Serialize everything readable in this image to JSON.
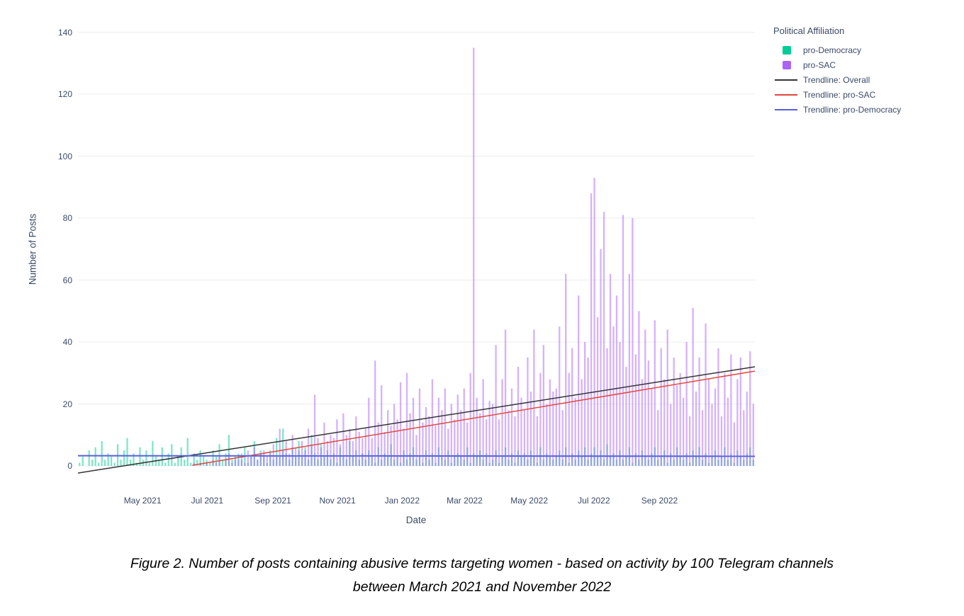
{
  "figure": {
    "caption_line1": "Figure 2. Number of posts containing abusive terms targeting women - based on activity by 100 Telegram channels",
    "caption_line2": "between March 2021 and November 2022"
  },
  "chart_data": {
    "type": "bar",
    "title": "",
    "xlabel": "Date",
    "ylabel": "Number of Posts",
    "ylim": [
      -8,
      146
    ],
    "grid": true,
    "legend_position": "right",
    "legend_title": "Political Affiliation",
    "yticks": [
      0,
      20,
      40,
      60,
      80,
      100,
      120,
      140
    ],
    "xticks": [
      {
        "label": "May 2021",
        "day": 61
      },
      {
        "label": "Jul 2021",
        "day": 122
      },
      {
        "label": "Sep 2021",
        "day": 184
      },
      {
        "label": "Nov 2021",
        "day": 245
      },
      {
        "label": "Jan 2022",
        "day": 306
      },
      {
        "label": "Mar 2022",
        "day": 365
      },
      {
        "label": "May 2022",
        "day": 426
      },
      {
        "label": "Jul 2022",
        "day": 487
      },
      {
        "label": "Sep 2022",
        "day": 549
      }
    ],
    "x_start": "2021-03-01",
    "x_end": "2022-11-30",
    "x_step_days": 3,
    "bar_opacity": 0.5,
    "legend": [
      {
        "label": "pro-Democracy",
        "swatch": "square",
        "color": "#00CC96"
      },
      {
        "label": "pro-SAC",
        "swatch": "square",
        "color": "#AB63FA"
      },
      {
        "label": "Trendline: Overall",
        "swatch": "line",
        "color": "#333333"
      },
      {
        "label": "Trendline: pro-SAC",
        "swatch": "line",
        "color": "#e2473f"
      },
      {
        "label": "Trendline: pro-Democracy",
        "swatch": "line",
        "color": "#5a5fde"
      }
    ],
    "series": [
      {
        "name": "pro-Democracy",
        "color": "#00CC96",
        "values": [
          1,
          3,
          0,
          5,
          2,
          6,
          1,
          8,
          2,
          4,
          3,
          1,
          7,
          2,
          5,
          9,
          2,
          4,
          1,
          6,
          2,
          5,
          1,
          8,
          3,
          2,
          6,
          1,
          4,
          7,
          1,
          3,
          6,
          2,
          9,
          1,
          4,
          2,
          5,
          3,
          2,
          1,
          5,
          3,
          7,
          2,
          4,
          10,
          2,
          3,
          4,
          2,
          6,
          1,
          3,
          8,
          2,
          5,
          3,
          1,
          5,
          2,
          9,
          3,
          12,
          4,
          2,
          6,
          3,
          8,
          3,
          6,
          2,
          10,
          4,
          2,
          7,
          3,
          5,
          2,
          4,
          1,
          6,
          3,
          2,
          8,
          3,
          5,
          2,
          4,
          2,
          5,
          3,
          1,
          6,
          2,
          4,
          3,
          7,
          2,
          3,
          1,
          5,
          2,
          4,
          6,
          2,
          3,
          1,
          5,
          2,
          4,
          1,
          6,
          3,
          2,
          5,
          1,
          3,
          4,
          3,
          2,
          6,
          1,
          4,
          3,
          5,
          2,
          4,
          1,
          2,
          5,
          1,
          3,
          6,
          2,
          4,
          1,
          5,
          3,
          4,
          2,
          5,
          3,
          1,
          6,
          2,
          4,
          3,
          2,
          3,
          5,
          2,
          6,
          1,
          4,
          2,
          5,
          3,
          6,
          2,
          4,
          6,
          3,
          5,
          2,
          7,
          3,
          4,
          2,
          5,
          2,
          3,
          6,
          1,
          4,
          2,
          5,
          3,
          2,
          4,
          6,
          2,
          3,
          5,
          1,
          4,
          2,
          6,
          3,
          2,
          4,
          1,
          5,
          3,
          6,
          2,
          4,
          1,
          3,
          5,
          2,
          3,
          6,
          2,
          4,
          1,
          5,
          3,
          2,
          4,
          6,
          2
        ]
      },
      {
        "name": "pro-SAC",
        "color": "#AB63FA",
        "values": [
          0,
          0,
          0,
          0,
          0,
          0,
          0,
          0,
          0,
          0,
          0,
          0,
          0,
          0,
          0,
          0,
          0,
          0,
          0,
          0,
          0,
          0,
          0,
          0,
          0,
          0,
          0,
          0,
          0,
          0,
          0,
          0,
          0,
          0,
          0,
          0,
          1,
          0,
          1,
          0,
          1,
          0,
          2,
          1,
          3,
          0,
          2,
          4,
          1,
          2,
          2,
          4,
          1,
          5,
          3,
          6,
          2,
          4,
          5,
          3,
          4,
          7,
          3,
          12,
          5,
          8,
          4,
          10,
          6,
          5,
          8,
          5,
          12,
          7,
          23,
          9,
          6,
          14,
          8,
          10,
          9,
          15,
          7,
          17,
          10,
          12,
          8,
          16,
          11,
          9,
          12,
          22,
          9,
          34,
          14,
          26,
          11,
          18,
          13,
          20,
          15,
          27,
          12,
          30,
          17,
          22,
          10,
          25,
          14,
          19,
          16,
          28,
          13,
          22,
          18,
          25,
          12,
          20,
          15,
          23,
          18,
          25,
          14,
          30,
          135,
          22,
          17,
          28,
          15,
          21,
          20,
          39,
          15,
          28,
          44,
          18,
          25,
          16,
          32,
          22,
          18,
          35,
          24,
          44,
          16,
          30,
          39,
          20,
          28,
          24,
          25,
          45,
          18,
          62,
          30,
          38,
          22,
          55,
          28,
          40,
          35,
          88,
          93,
          48,
          70,
          82,
          38,
          62,
          45,
          55,
          40,
          81,
          32,
          62,
          80,
          36,
          50,
          28,
          44,
          34,
          25,
          47,
          18,
          38,
          28,
          44,
          20,
          35,
          26,
          30,
          22,
          40,
          16,
          51,
          24,
          35,
          18,
          46,
          28,
          20,
          25,
          38,
          16,
          30,
          22,
          36,
          14,
          28,
          35,
          18,
          24,
          37,
          20
        ]
      }
    ],
    "trendlines": [
      {
        "name": "Trendline: Overall",
        "color": "#333333",
        "x0_day": 0,
        "y0": -2.3,
        "x1_day": 639,
        "y1": 32,
        "width": 1.5
      },
      {
        "name": "Trendline: pro-SAC",
        "color": "#e2473f",
        "x0_day": 108,
        "y0": 0.2,
        "x1_day": 639,
        "y1": 30.6,
        "width": 1.5
      },
      {
        "name": "Trendline: pro-Democracy",
        "color": "#5a5fde",
        "x0_day": 0,
        "y0": 3.3,
        "x1_day": 639,
        "y1": 3.1,
        "width": 2
      }
    ]
  }
}
